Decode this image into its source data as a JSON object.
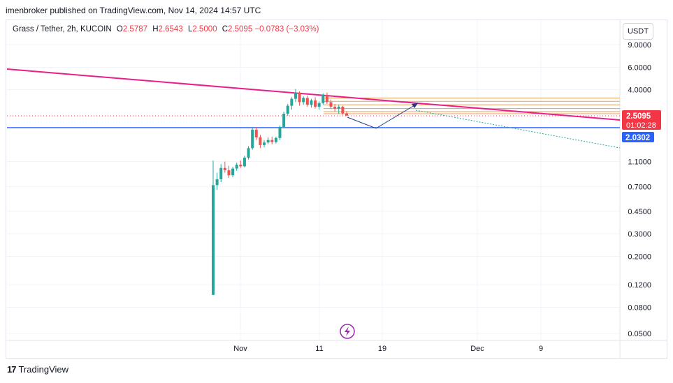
{
  "header": {
    "publisher_line": "imenbroker published on TradingView.com, Nov 14, 2024 14:57 UTC"
  },
  "legend": {
    "symbol": "Grass / Tether, 2h, KUCOIN",
    "open_label": "O",
    "open": "2.5787",
    "high_label": "H",
    "high": "2.6543",
    "low_label": "L",
    "low": "2.5000",
    "close_label": "C",
    "close": "2.5095",
    "change": "−0.0783 (−3.03%)"
  },
  "currency_button": "USDT",
  "footer": {
    "brand": "TradingView",
    "logo_text": "17"
  },
  "colors": {
    "up": "#26a69a",
    "down": "#ef5350",
    "trendline": "#e91e8c",
    "support": "#2962ff",
    "price_badge": "#f23645",
    "level_lines": "#e0a060"
  },
  "chart_data": {
    "type": "candlestick",
    "yscale": "log",
    "y_ticks": [
      "9.0000",
      "6.0000",
      "4.0000",
      "1.1000",
      "0.7000",
      "0.4500",
      "0.3000",
      "0.2000",
      "0.1200",
      "0.0800",
      "0.0500"
    ],
    "x_ticks": [
      "Nov",
      "11",
      "19",
      "Dec",
      "9"
    ],
    "last_price": "2.5095",
    "countdown": "01:02:28",
    "support_level": "2.0302",
    "candles": [
      {
        "o": 0.1,
        "h": 1.12,
        "l": 0.1,
        "c": 0.72
      },
      {
        "o": 0.72,
        "h": 0.9,
        "l": 0.66,
        "c": 0.8
      },
      {
        "o": 0.8,
        "h": 1.05,
        "l": 0.76,
        "c": 0.98
      },
      {
        "o": 0.98,
        "h": 1.1,
        "l": 0.9,
        "c": 0.94
      },
      {
        "o": 0.94,
        "h": 1.02,
        "l": 0.82,
        "c": 0.86
      },
      {
        "o": 0.86,
        "h": 1.0,
        "l": 0.83,
        "c": 0.97
      },
      {
        "o": 0.97,
        "h": 1.08,
        "l": 0.93,
        "c": 1.04
      },
      {
        "o": 1.04,
        "h": 1.12,
        "l": 0.98,
        "c": 1.01
      },
      {
        "o": 1.01,
        "h": 1.22,
        "l": 0.99,
        "c": 1.18
      },
      {
        "o": 1.18,
        "h": 1.45,
        "l": 1.14,
        "c": 1.4
      },
      {
        "o": 1.4,
        "h": 2.05,
        "l": 1.36,
        "c": 1.95
      },
      {
        "o": 1.95,
        "h": 2.05,
        "l": 1.62,
        "c": 1.7
      },
      {
        "o": 1.7,
        "h": 1.78,
        "l": 1.4,
        "c": 1.48
      },
      {
        "o": 1.48,
        "h": 1.62,
        "l": 1.42,
        "c": 1.55
      },
      {
        "o": 1.55,
        "h": 1.7,
        "l": 1.5,
        "c": 1.62
      },
      {
        "o": 1.62,
        "h": 1.72,
        "l": 1.5,
        "c": 1.56
      },
      {
        "o": 1.56,
        "h": 1.72,
        "l": 1.52,
        "c": 1.68
      },
      {
        "o": 1.68,
        "h": 2.1,
        "l": 1.62,
        "c": 2.05
      },
      {
        "o": 2.05,
        "h": 2.7,
        "l": 2.0,
        "c": 2.6
      },
      {
        "o": 2.6,
        "h": 3.1,
        "l": 2.5,
        "c": 3.0
      },
      {
        "o": 3.0,
        "h": 3.5,
        "l": 2.8,
        "c": 3.4
      },
      {
        "o": 3.4,
        "h": 4.05,
        "l": 3.2,
        "c": 3.8
      },
      {
        "o": 3.8,
        "h": 3.9,
        "l": 3.0,
        "c": 3.2
      },
      {
        "o": 3.2,
        "h": 3.55,
        "l": 3.05,
        "c": 3.45
      },
      {
        "o": 3.45,
        "h": 3.6,
        "l": 2.95,
        "c": 3.05
      },
      {
        "o": 3.05,
        "h": 3.4,
        "l": 2.9,
        "c": 3.3
      },
      {
        "o": 3.3,
        "h": 3.5,
        "l": 2.85,
        "c": 2.95
      },
      {
        "o": 2.95,
        "h": 3.25,
        "l": 2.8,
        "c": 3.15
      },
      {
        "o": 3.15,
        "h": 3.75,
        "l": 3.05,
        "c": 3.65
      },
      {
        "o": 3.65,
        "h": 3.8,
        "l": 3.1,
        "c": 3.2
      },
      {
        "o": 3.2,
        "h": 3.35,
        "l": 2.85,
        "c": 2.95
      },
      {
        "o": 2.95,
        "h": 3.1,
        "l": 2.7,
        "c": 2.85
      },
      {
        "o": 2.85,
        "h": 3.05,
        "l": 2.6,
        "c": 2.95
      },
      {
        "o": 2.95,
        "h": 3.0,
        "l": 2.55,
        "c": 2.62
      },
      {
        "o": 2.62,
        "h": 2.72,
        "l": 2.5,
        "c": 2.51
      }
    ]
  }
}
